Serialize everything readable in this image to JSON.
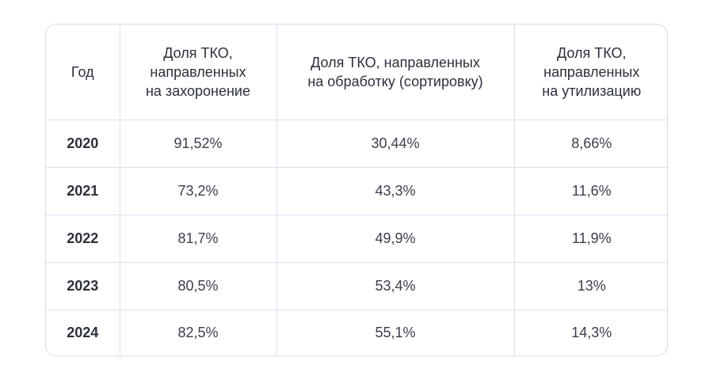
{
  "table": {
    "headers": [
      "Год",
      "Доля ТКО,\nнаправленных\nна захоронение",
      "Доля ТКО, направленных\nна обработку (сортировку)",
      "Доля ТКО,\nнаправленных\nна утилизацию"
    ],
    "rows": [
      [
        "2020",
        "91,52%",
        "30,44%",
        "8,66%"
      ],
      [
        "2021",
        "73,2%",
        "43,3%",
        "11,6%"
      ],
      [
        "2022",
        "81,7%",
        "49,9%",
        "11,9%"
      ],
      [
        "2023",
        "80,5%",
        "53,4%",
        "13%"
      ],
      [
        "2024",
        "82,5%",
        "55,1%",
        "14,3%"
      ]
    ]
  }
}
